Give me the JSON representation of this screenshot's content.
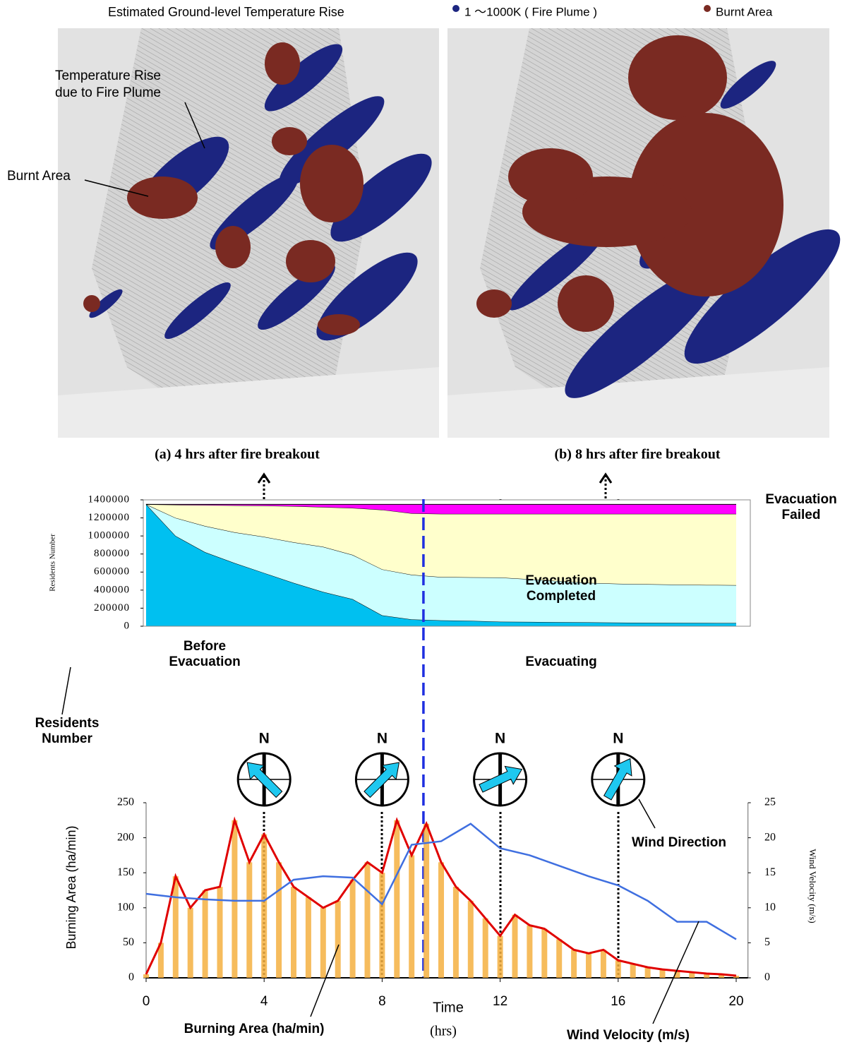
{
  "maps": {
    "title": "Estimated Ground-level Temperature Rise",
    "legend": [
      {
        "label": "1 ～1000K ( Fire Plume )",
        "color": "#1c2580"
      },
      {
        "label": "Burnt Area",
        "color": "#7a2a22"
      }
    ],
    "annotations": [
      "Temperature Rise",
      "due to Fire Plume",
      "Burnt Area"
    ],
    "captions": [
      "(a) 4 hrs after fire breakout",
      "(b) 8 hrs after fire breakout"
    ]
  },
  "chart_data": [
    {
      "type": "area",
      "stacked": true,
      "ylabel": "Residents Number",
      "annotation": "Residents Number",
      "x": [
        0,
        1,
        2,
        3,
        4,
        5,
        6,
        7,
        8,
        9,
        10,
        11,
        12,
        13,
        14,
        15,
        16,
        17,
        18,
        19,
        20
      ],
      "xlim": [
        0,
        20.4
      ],
      "ylim": [
        0,
        1400000
      ],
      "yticks": [
        0,
        200000,
        400000,
        600000,
        800000,
        1000000,
        1200000,
        1400000
      ],
      "series": [
        {
          "name": "Before Evacuation",
          "color": "#00c0f0",
          "values": [
            1350000,
            1000000,
            820000,
            700000,
            590000,
            480000,
            380000,
            300000,
            120000,
            75000,
            65000,
            60000,
            50000,
            48000,
            45000,
            43000,
            40000,
            38000,
            37000,
            36000,
            35000
          ]
        },
        {
          "name": "Evacuating",
          "color": "#ccffff",
          "values": [
            0,
            200000,
            290000,
            340000,
            400000,
            450000,
            500000,
            490000,
            510000,
            495000,
            480000,
            482000,
            490000,
            472000,
            455000,
            437000,
            430000,
            427000,
            423000,
            421000,
            420000
          ]
        },
        {
          "name": "Evacuation Completed",
          "color": "#ffffcc",
          "values": [
            0,
            145000,
            232000,
            298000,
            345000,
            400000,
            440000,
            520000,
            660000,
            680000,
            700000,
            703000,
            705000,
            725000,
            745000,
            765000,
            775000,
            780000,
            785000,
            788000,
            790000
          ]
        },
        {
          "name": "Evacuation Failed",
          "color": "#ff00ff",
          "values": [
            0,
            5000,
            8000,
            12000,
            15000,
            20000,
            30000,
            40000,
            60000,
            100000,
            105000,
            105000,
            105000,
            105000,
            105000,
            105000,
            105000,
            105000,
            105000,
            105000,
            105000
          ]
        }
      ]
    },
    {
      "type": "combo",
      "xlabel": "Time",
      "xunit": "(hrs)",
      "ylabel": "Burning Area (ha/min)",
      "y2label": "Wind Velocity (m/s)",
      "annotation": "Wind Direction",
      "compass_label": "N",
      "xlim": [
        0,
        20.4
      ],
      "xticks": [
        0,
        4,
        8,
        12,
        16,
        20
      ],
      "ylim": [
        0,
        250
      ],
      "yticks": [
        0,
        50,
        100,
        150,
        200,
        250
      ],
      "y2lim": [
        0,
        25
      ],
      "y2ticks": [
        0,
        5,
        10,
        15,
        20,
        25
      ],
      "series": [
        {
          "name": "Burning Area (ha/min)",
          "color": "#e00000",
          "bar_color": "#f5b041",
          "x": [
            0,
            0.5,
            1,
            1.5,
            2,
            2.5,
            3,
            3.5,
            4,
            4.5,
            5,
            5.5,
            6,
            6.5,
            7,
            7.5,
            8,
            8.5,
            9,
            9.5,
            10,
            10.5,
            11,
            11.5,
            12,
            12.5,
            13,
            13.5,
            14,
            14.5,
            15,
            15.5,
            16,
            16.5,
            17,
            17.5,
            18,
            18.5,
            19,
            19.5,
            20
          ],
          "values": [
            5,
            50,
            145,
            100,
            125,
            130,
            225,
            165,
            205,
            165,
            130,
            115,
            100,
            110,
            140,
            165,
            150,
            225,
            175,
            220,
            165,
            130,
            110,
            85,
            60,
            90,
            75,
            70,
            55,
            40,
            35,
            40,
            25,
            20,
            15,
            12,
            10,
            8,
            6,
            5,
            3
          ]
        },
        {
          "name": "Wind Velocity (m/s)",
          "color": "#3f6fe0",
          "axis": "y2",
          "x": [
            0,
            1,
            2,
            3,
            4,
            5,
            6,
            7,
            8,
            9,
            10,
            11,
            12,
            13,
            14,
            15,
            16,
            17,
            18,
            19,
            20
          ],
          "values": [
            12,
            11.5,
            11.2,
            11,
            11,
            14,
            14.5,
            14.3,
            10.5,
            19,
            19.5,
            22,
            18.5,
            17.5,
            16,
            14.5,
            13.2,
            11,
            8,
            8,
            5.5
          ]
        }
      ]
    }
  ]
}
